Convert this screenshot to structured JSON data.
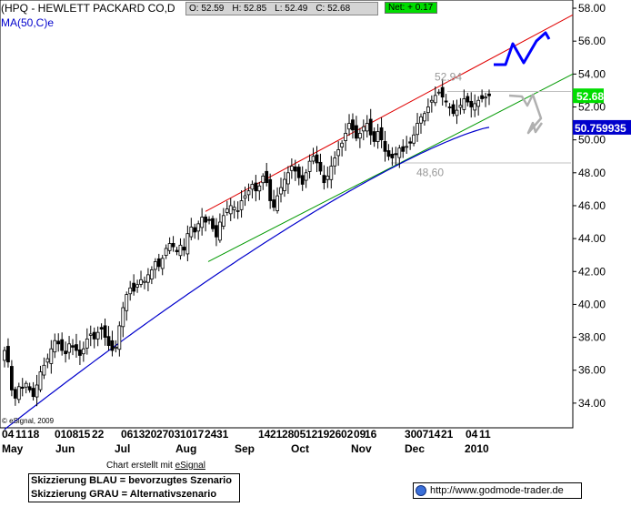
{
  "header": {
    "symbol_title": "(HPQ - HEWLETT PACKARD CO,D",
    "ma_label": "MA(50,C)e",
    "open": "O: 52.59",
    "high": "H: 52.85",
    "low": "L: 52.49",
    "close": "C: 52.68",
    "net": "Net: + 0.17"
  },
  "colors": {
    "price": "#000000",
    "ma": "#0000cc",
    "resistance": "#e00000",
    "support": "#009900",
    "scenario_blue": "#0000ff",
    "scenario_gray": "#b0b0b0",
    "last_price_bg": "#00dd00",
    "ma_value_bg": "#0000cc"
  },
  "chart_data": {
    "type": "candlestick",
    "ylim": [
      32.5,
      58.5
    ],
    "y_ticks": [
      "58.00",
      "56.00",
      "54.00",
      "52.00",
      "50.00",
      "48.00",
      "46.00",
      "44.00",
      "42.00",
      "40.00",
      "38.00",
      "36.00",
      "34.00"
    ],
    "last_price_label": "52.68",
    "ma_value_label": "50.759935",
    "annotations": {
      "high": "52,94",
      "low": "48,60"
    },
    "x_day_labels": [
      "04",
      "11",
      "18",
      "01",
      "08",
      "15",
      "22",
      "06",
      "13",
      "20",
      "27",
      "03",
      "10",
      "17",
      "24",
      "31",
      "14",
      "21",
      "28",
      "05",
      "12",
      "19",
      "26",
      "02",
      "09",
      "16",
      "30",
      "07",
      "14",
      "21",
      "04",
      "11"
    ],
    "x_month_labels": [
      "May",
      "Jun",
      "Jul",
      "Aug",
      "Sep",
      "Oct",
      "Nov",
      "Dec",
      "2010"
    ],
    "price_closes": [
      37.2,
      36.5,
      34.8,
      34.3,
      35.0,
      34.9,
      35.2,
      34.8,
      34.4,
      35.1,
      35.9,
      36.3,
      36.7,
      37.3,
      37.8,
      37.6,
      37.2,
      37.0,
      37.6,
      37.4,
      37.2,
      36.9,
      37.3,
      37.9,
      38.2,
      37.9,
      38.3,
      38.5,
      38.0,
      37.5,
      37.2,
      37.4,
      38.7,
      39.8,
      40.6,
      41.0,
      40.8,
      41.2,
      41.5,
      41.4,
      41.8,
      42.1,
      42.6,
      42.3,
      42.8,
      43.4,
      43.7,
      43.5,
      43.2,
      43.6,
      43.3,
      44.3,
      44.7,
      44.4,
      44.9,
      45.3,
      45.0,
      45.1,
      44.6,
      44.1,
      45.0,
      45.4,
      45.8,
      46.0,
      45.9,
      45.7,
      46.3,
      46.6,
      46.9,
      47.3,
      46.9,
      47.2,
      47.8,
      47.4,
      46.3,
      45.9,
      46.6,
      47.1,
      47.6,
      48.0,
      48.4,
      48.1,
      47.7,
      47.3,
      48.0,
      48.7,
      49.0,
      48.6,
      48.1,
      47.4,
      47.8,
      48.4,
      48.9,
      49.4,
      49.8,
      50.4,
      51.0,
      50.6,
      50.1,
      50.4,
      50.8,
      51.0,
      50.3,
      49.9,
      50.5,
      50.0,
      49.3,
      49.0,
      48.9,
      49.1,
      49.5,
      49.3,
      49.6,
      49.8,
      50.3,
      51.0,
      51.4,
      51.6,
      52.0,
      52.4,
      52.7,
      52.9,
      52.6,
      52.3,
      52.0,
      51.6,
      51.8,
      52.1,
      52.5,
      52.3,
      52.0,
      52.2,
      52.4,
      52.5,
      52.6,
      52.68
    ],
    "ma_start_value": 32.4,
    "ma_end_value": 50.76
  },
  "scenarios": {
    "blue_label": "Skizzierung BLAU = bevorzugtes Szenario",
    "gray_label": "Skizzierung GRAU = Alternativszenario"
  },
  "footer": {
    "credit_prefix": "Chart erstellt mit ",
    "credit_link": "eSignal",
    "copyright": "© eSignal, 2009",
    "source_url": "http://www.godmode-trader.de"
  }
}
